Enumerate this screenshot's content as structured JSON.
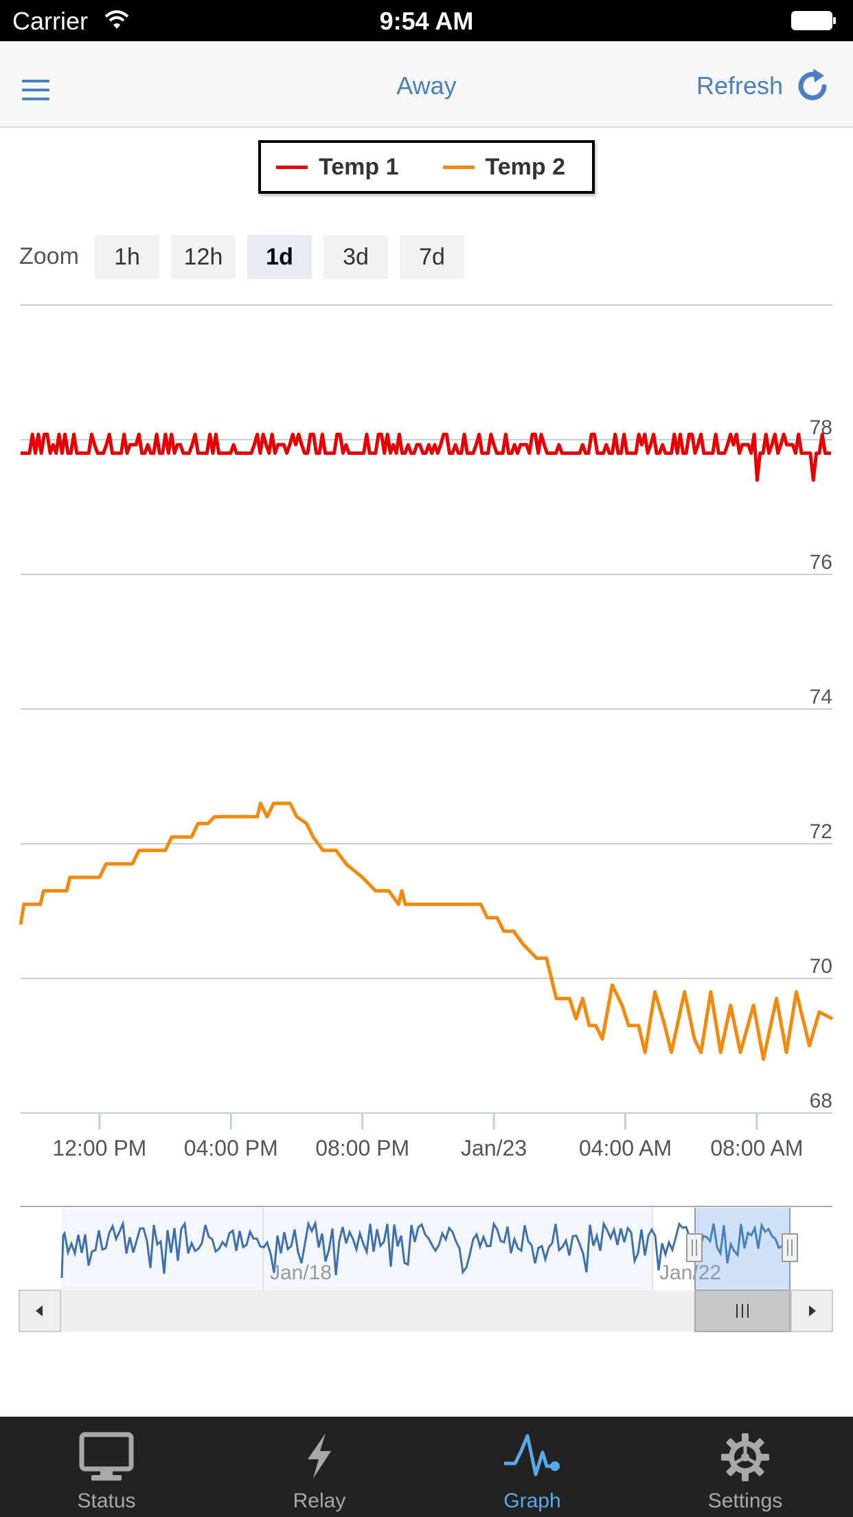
{
  "status_bar": {
    "carrier": "Carrier",
    "time": "9:54 AM"
  },
  "nav": {
    "title": "Away",
    "refresh_label": "Refresh"
  },
  "legend": [
    {
      "name": "Temp 1",
      "color": "#e60000"
    },
    {
      "name": "Temp 2",
      "color": "#f5890c"
    }
  ],
  "zoom": {
    "label": "Zoom",
    "options": [
      "1h",
      "12h",
      "1d",
      "3d",
      "7d"
    ],
    "selected": "1d"
  },
  "chart_data": {
    "type": "line",
    "y_ticks": [
      "78",
      "76",
      "74",
      "72",
      "70",
      "68"
    ],
    "ylim": [
      68,
      80
    ],
    "x_tick_labels": [
      "12:00 PM",
      "04:00 PM",
      "08:00 PM",
      "Jan/23",
      "04:00 AM",
      "08:00 AM"
    ],
    "x_ticks_hours": [
      12,
      16,
      20,
      24,
      28,
      32
    ],
    "xlim_hours": [
      9.6,
      34.3
    ],
    "series": [
      {
        "name": "Temp 1",
        "color": "#e60000",
        "base": 77.8,
        "amplitude": 0.28,
        "dips": [
          [
            32,
            77.4
          ],
          [
            33.7,
            77.4
          ]
        ]
      },
      {
        "name": "Temp 2",
        "color": "#f5890c",
        "points": [
          [
            9.6,
            70.8
          ],
          [
            9.7,
            71.1
          ],
          [
            10.2,
            71.1
          ],
          [
            10.3,
            71.3
          ],
          [
            11.0,
            71.3
          ],
          [
            11.1,
            71.5
          ],
          [
            12.0,
            71.5
          ],
          [
            12.2,
            71.7
          ],
          [
            13.0,
            71.7
          ],
          [
            13.2,
            71.9
          ],
          [
            14.0,
            71.9
          ],
          [
            14.2,
            72.1
          ],
          [
            14.8,
            72.1
          ],
          [
            15.0,
            72.3
          ],
          [
            15.3,
            72.3
          ],
          [
            15.5,
            72.4
          ],
          [
            16.8,
            72.4
          ],
          [
            16.9,
            72.6
          ],
          [
            17.1,
            72.4
          ],
          [
            17.3,
            72.6
          ],
          [
            17.8,
            72.6
          ],
          [
            18.0,
            72.4
          ],
          [
            18.3,
            72.3
          ],
          [
            18.5,
            72.1
          ],
          [
            18.8,
            71.9
          ],
          [
            19.2,
            71.9
          ],
          [
            19.5,
            71.7
          ],
          [
            20.0,
            71.5
          ],
          [
            20.4,
            71.3
          ],
          [
            20.8,
            71.3
          ],
          [
            21.1,
            71.1
          ],
          [
            21.2,
            71.3
          ],
          [
            21.3,
            71.1
          ],
          [
            23.6,
            71.1
          ],
          [
            23.8,
            70.9
          ],
          [
            24.1,
            70.9
          ],
          [
            24.3,
            70.7
          ],
          [
            24.6,
            70.7
          ],
          [
            24.9,
            70.5
          ],
          [
            25.3,
            70.3
          ],
          [
            25.6,
            70.3
          ],
          [
            25.9,
            69.7
          ],
          [
            26.3,
            69.7
          ],
          [
            26.5,
            69.4
          ],
          [
            26.7,
            69.7
          ],
          [
            26.9,
            69.3
          ],
          [
            27.1,
            69.3
          ],
          [
            27.3,
            69.1
          ],
          [
            27.6,
            69.9
          ],
          [
            27.9,
            69.6
          ],
          [
            28.1,
            69.3
          ],
          [
            28.4,
            69.3
          ],
          [
            28.6,
            68.9
          ],
          [
            28.9,
            69.8
          ],
          [
            29.2,
            69.3
          ],
          [
            29.4,
            68.9
          ],
          [
            29.8,
            69.8
          ],
          [
            30.1,
            69.1
          ],
          [
            30.3,
            68.9
          ],
          [
            30.6,
            69.8
          ],
          [
            30.9,
            68.9
          ],
          [
            31.2,
            69.6
          ],
          [
            31.5,
            68.9
          ],
          [
            31.9,
            69.6
          ],
          [
            32.2,
            68.8
          ],
          [
            32.6,
            69.7
          ],
          [
            32.9,
            68.9
          ],
          [
            33.2,
            69.8
          ],
          [
            33.6,
            69.0
          ],
          [
            33.9,
            69.5
          ],
          [
            34.3,
            69.4
          ]
        ]
      }
    ]
  },
  "navigator": {
    "labels": [
      "Jan/18",
      "Jan/22"
    ]
  },
  "tabs": [
    {
      "label": "Status",
      "icon": "monitor-icon"
    },
    {
      "label": "Relay",
      "icon": "lightning-icon"
    },
    {
      "label": "Graph",
      "icon": "pulse-icon"
    },
    {
      "label": "Settings",
      "icon": "gear-icon"
    }
  ],
  "active_tab": "Graph"
}
